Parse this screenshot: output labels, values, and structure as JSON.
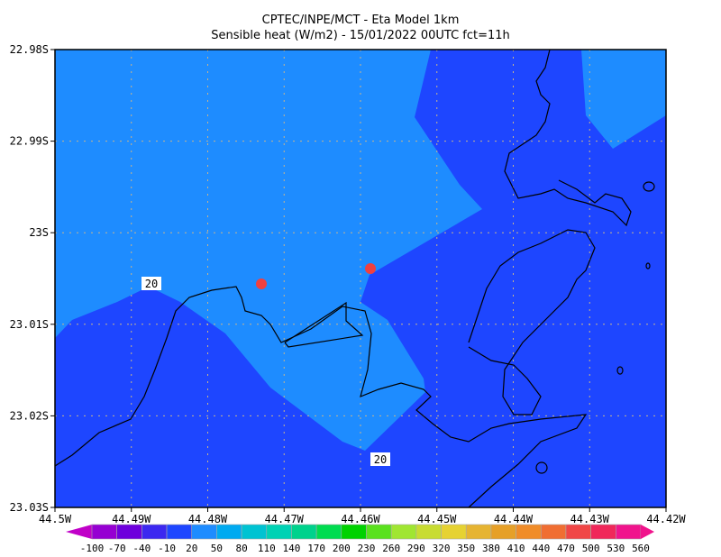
{
  "title": {
    "line1": "CPTEC/INPE/MCT -  Eta Model 1km",
    "line2": "Sensible heat (W/m2) - 15/01/2022 00UTC fct=11h"
  },
  "map": {
    "lon_range": [
      -44.5,
      -44.42
    ],
    "lat_range": [
      -23.03,
      -22.98
    ],
    "lon_ticks": [
      "44.5W",
      "44.49W",
      "44.48W",
      "44.47W",
      "44.46W",
      "44.45W",
      "44.44W",
      "44.43W",
      "44.42W"
    ],
    "lat_ticks": [
      "22.98S",
      "22.99S",
      "23S",
      "23.01S",
      "23.02S",
      "23.03S"
    ],
    "grid": true,
    "fill_colors": {
      "dark_band": "#1e46ff",
      "light_band": "#1e8cff"
    },
    "contour_labels": [
      "20",
      "20"
    ],
    "markers_color": "#f04040"
  },
  "colorbar": {
    "labels": [
      "-100",
      "-70",
      "-40",
      "-10",
      "20",
      "50",
      "80",
      "110",
      "140",
      "170",
      "200",
      "230",
      "260",
      "290",
      "320",
      "350",
      "380",
      "410",
      "440",
      "470",
      "500",
      "530",
      "560"
    ],
    "colors": [
      "#c000c8",
      "#9600d2",
      "#6e00dc",
      "#3c28f0",
      "#1e46ff",
      "#1e8cff",
      "#00aaf0",
      "#00c3d2",
      "#00d2b4",
      "#00d28c",
      "#00dc50",
      "#00d200",
      "#5ae11e",
      "#a0e632",
      "#c8dc32",
      "#e6d232",
      "#e6b432",
      "#e6a028",
      "#f08c28",
      "#f06e32",
      "#f04646",
      "#f0285a",
      "#f0148c",
      "#f0148c"
    ]
  }
}
